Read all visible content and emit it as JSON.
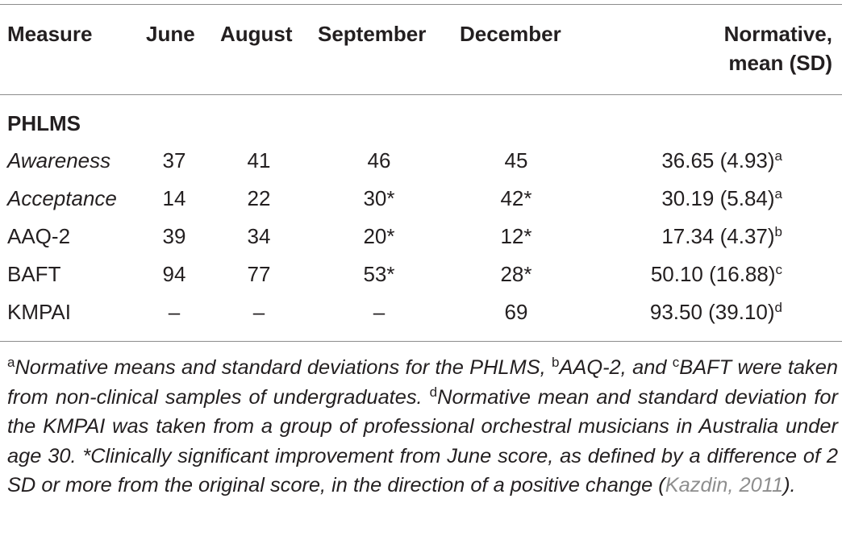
{
  "table": {
    "headers": {
      "measure": "Measure",
      "june": "June",
      "august": "August",
      "september": "September",
      "december": "December",
      "normative_line1": "Normative,",
      "normative_line2": "mean (SD)"
    },
    "section_title": "PHLMS",
    "rows": [
      {
        "label": "Awareness",
        "june": "37",
        "august": "41",
        "september": "46",
        "december": "45",
        "normative": "36.65 (4.93)",
        "normative_note": "a"
      },
      {
        "label": "Acceptance",
        "june": "14",
        "august": "22",
        "september": "30*",
        "december": "42*",
        "normative": "30.19 (5.84)",
        "normative_note": "a"
      },
      {
        "label": "AAQ-2",
        "june": "39",
        "august": "34",
        "september": "20*",
        "december": "12*",
        "normative": "17.34 (4.37)",
        "normative_note": "b"
      },
      {
        "label": "BAFT",
        "june": "94",
        "august": "77",
        "september": "53*",
        "december": "28*",
        "normative": "50.10 (16.88)",
        "normative_note": "c"
      },
      {
        "label": "KMPAI",
        "june": "–",
        "august": "–",
        "september": "–",
        "december": "69",
        "normative": "93.50 (39.10)",
        "normative_note": "d"
      }
    ]
  },
  "footnotes": {
    "a_mark": "a",
    "a_text": "Normative means and standard deviations for the PHLMS, ",
    "b_mark": "b",
    "b_text": "AAQ-2, and ",
    "c_mark": "c",
    "c_text": "BAFT were taken from non-clinical samples of undergraduates. ",
    "d_mark": "d",
    "d_text": "Normative mean and standard deviation for the KMPAI was taken from a group of professional orchestral musicians in Australia under age 30. *Clinically significant improvement from June score, as defined by a difference of 2 SD or more from the original score, in the direction of a positive change (",
    "citation": "Kazdin, 2011",
    "end_text": ")."
  }
}
